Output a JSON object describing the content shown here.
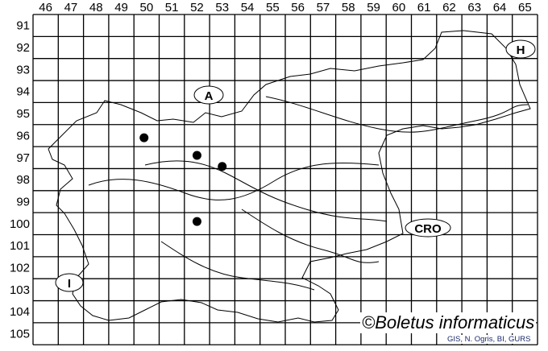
{
  "map": {
    "columns": [
      "46",
      "47",
      "48",
      "49",
      "50",
      "51",
      "52",
      "53",
      "54",
      "55",
      "56",
      "57",
      "58",
      "59",
      "60",
      "61",
      "62",
      "63",
      "64",
      "65"
    ],
    "rows": [
      "91",
      "92",
      "93",
      "94",
      "95",
      "96",
      "97",
      "98",
      "99",
      "100",
      "101",
      "102",
      "103",
      "104",
      "105"
    ],
    "country_labels": [
      {
        "id": "austria",
        "text": "A"
      },
      {
        "id": "hungary",
        "text": "H"
      },
      {
        "id": "croatia",
        "text": "CRO"
      },
      {
        "id": "italy",
        "text": "I"
      }
    ],
    "records": [
      {
        "col": "50",
        "row": "96"
      },
      {
        "col": "52",
        "row": "97"
      },
      {
        "col": "53",
        "row": "97"
      },
      {
        "col": "52",
        "row": "100"
      }
    ],
    "colors": {
      "lines": "#000000",
      "dots": "#000000",
      "background": "#ffffff"
    }
  },
  "credit": "©Boletus informaticus",
  "source": "GIS, N. Ogris, BI, GURS"
}
